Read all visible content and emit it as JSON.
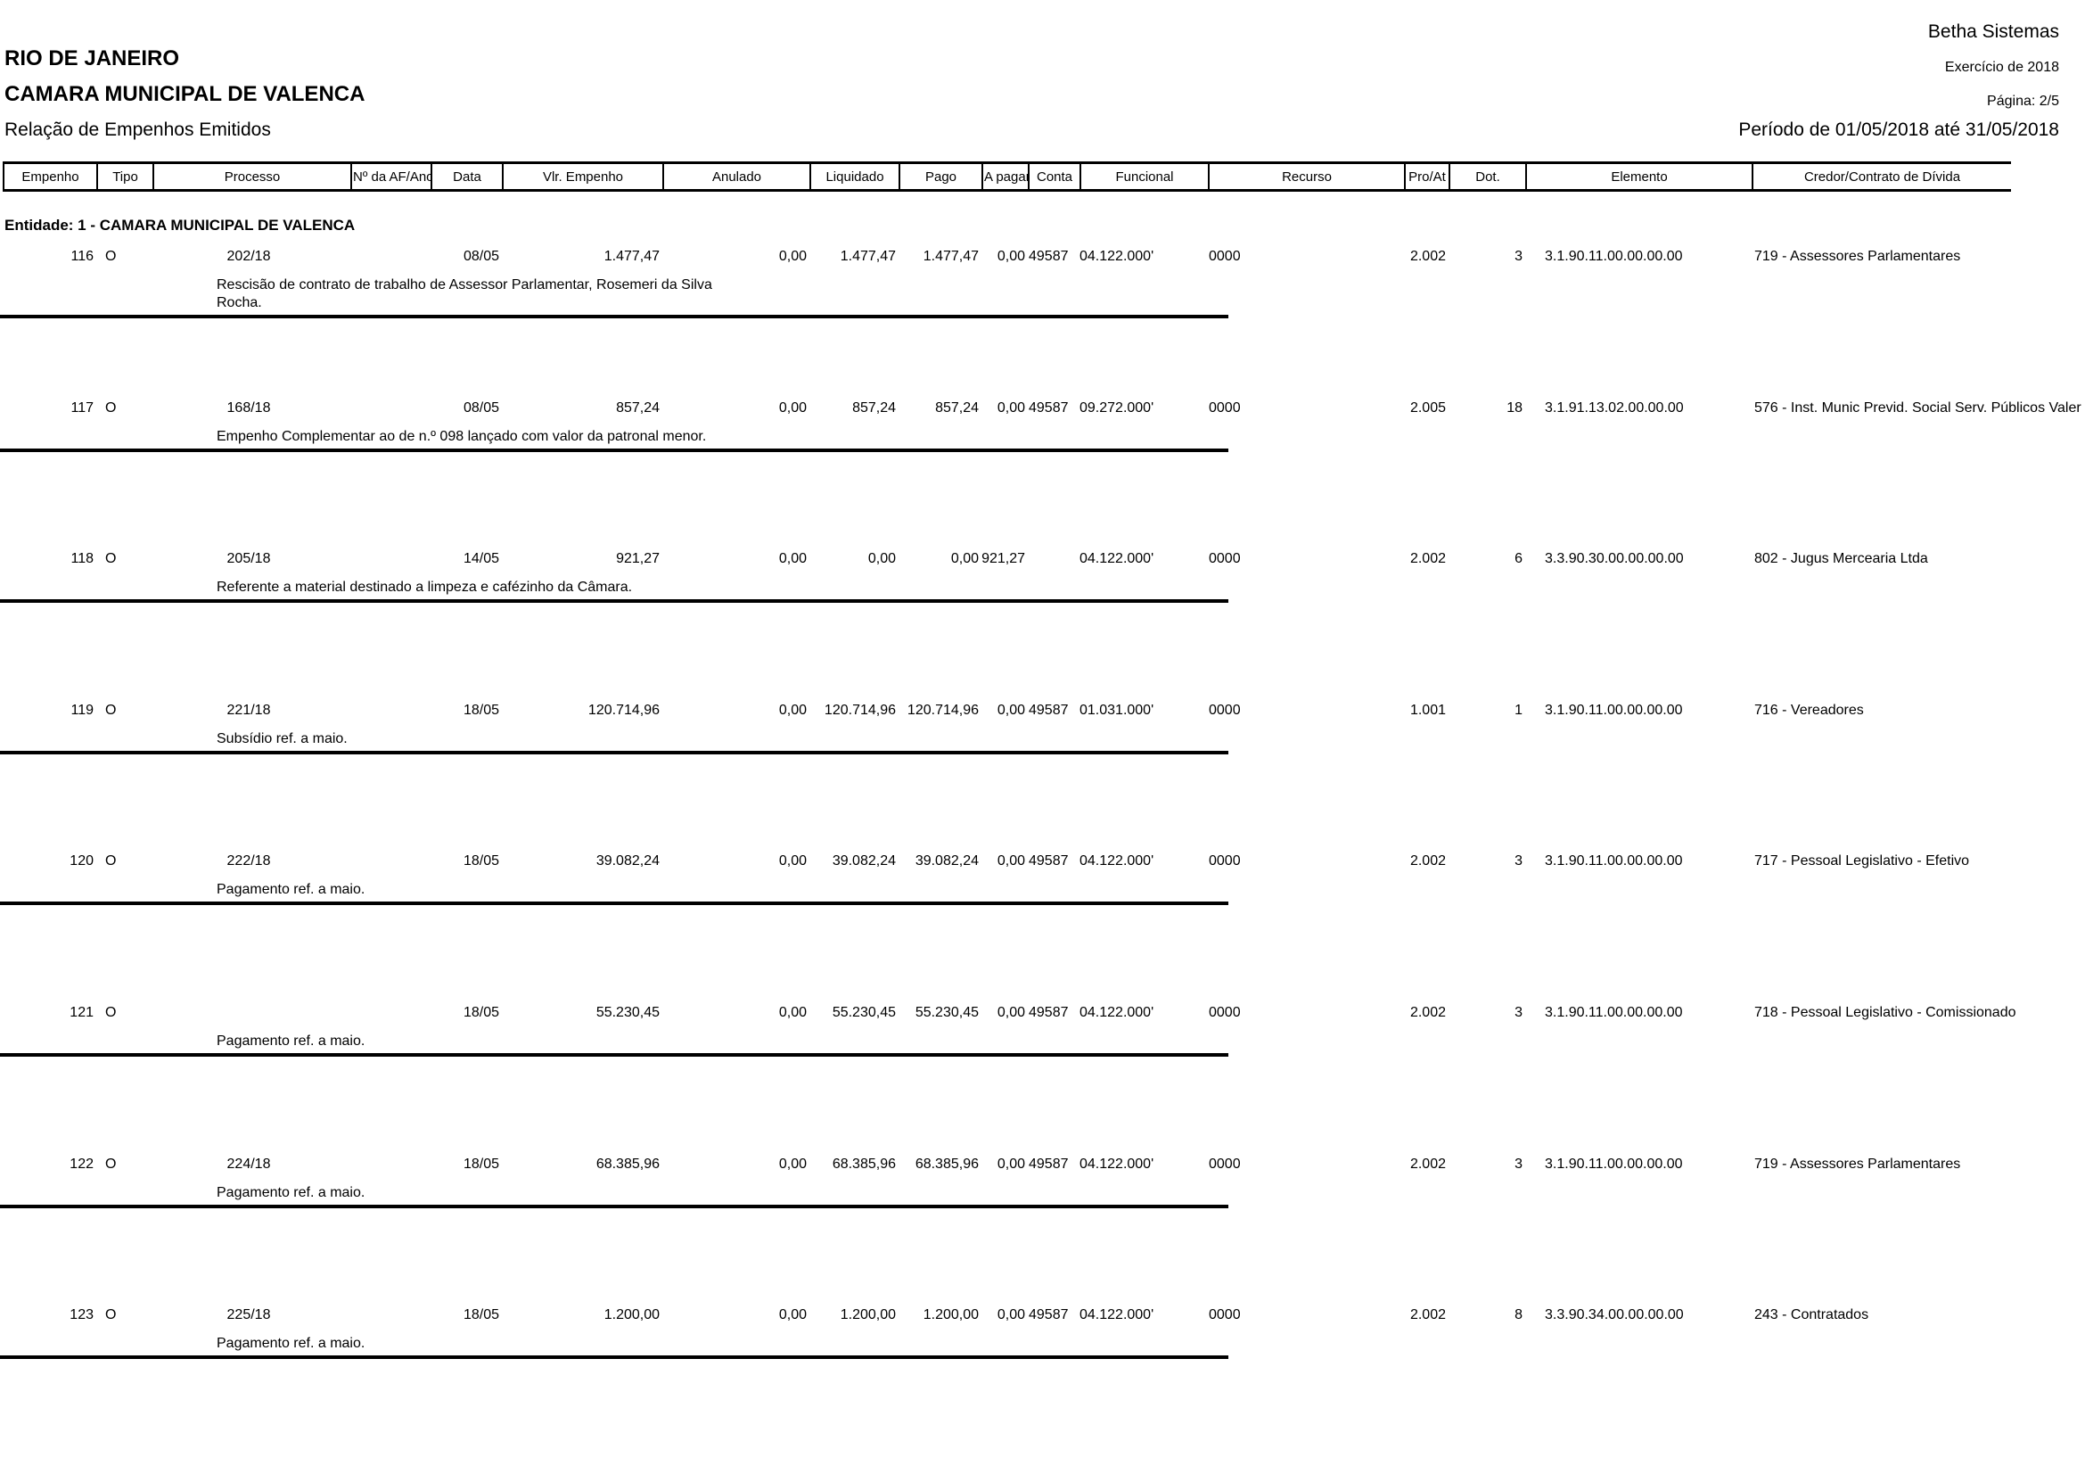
{
  "report": {
    "state": "RIO DE JANEIRO",
    "organization": "CAMARA MUNICIPAL DE VALENCA",
    "title": "Relação de Empenhos Emitidos",
    "vendor": "Betha Sistemas",
    "exercise": "Exercício de 2018",
    "page": "Página: 2/5",
    "period": "Período de 01/05/2018 até 31/05/2018",
    "entity": "Entidade: 1 - CAMARA MUNICIPAL DE VALENCA"
  },
  "table": {
    "columns": [
      "Empenho",
      "Tipo",
      "Processo",
      "Nº da AF/Ano",
      "Data",
      "Vlr. Empenho",
      "Anulado",
      "Liquidado",
      "Pago",
      "A pagar",
      "Conta",
      "Funcional",
      "Recurso",
      "Pro/At",
      "Dot.",
      "Elemento",
      "Credor/Contrato de Dívida"
    ],
    "rows": [
      {
        "empenho": "116",
        "tipo": "O",
        "processo": "202/18",
        "af_ano": "",
        "data": "08/05",
        "vlr_empenho": "1.477,47",
        "anulado": "0,00",
        "liquidado": "1.477,47",
        "pago": "1.477,47",
        "a_pagar": "0,00",
        "conta": "49587",
        "funcional": "04.122.000'",
        "recurso": "0000",
        "pro_at": "2.002",
        "dot": "3",
        "elemento": "3.1.90.11.00.00.00.00",
        "credor": "719 - Assessores Parlamentares",
        "historico": "Rescisão de contrato de trabalho de Assessor Parlamentar, Rosemeri da Silva\nRocha."
      },
      {
        "empenho": "117",
        "tipo": "O",
        "processo": "168/18",
        "af_ano": "",
        "data": "08/05",
        "vlr_empenho": "857,24",
        "anulado": "0,00",
        "liquidado": "857,24",
        "pago": "857,24",
        "a_pagar": "0,00",
        "conta": "49587",
        "funcional": "09.272.000'",
        "recurso": "0000",
        "pro_at": "2.005",
        "dot": "18",
        "elemento": "3.1.91.13.02.00.00.00",
        "credor": "576 - Inst. Munic Previd. Social Serv. Públicos Valer",
        "historico": "Empenho Complementar ao de n.º 098 lançado com valor da patronal menor."
      },
      {
        "empenho": "118",
        "tipo": "O",
        "processo": "205/18",
        "af_ano": "",
        "data": "14/05",
        "vlr_empenho": "921,27",
        "anulado": "0,00",
        "liquidado": "0,00",
        "pago": "0,00",
        "a_pagar": "921,27",
        "conta": "",
        "funcional": "04.122.000'",
        "recurso": "0000",
        "pro_at": "2.002",
        "dot": "6",
        "elemento": "3.3.90.30.00.00.00.00",
        "credor": "802 - Jugus Mercearia Ltda",
        "historico": "Referente a material destinado a limpeza e cafézinho da Câmara."
      },
      {
        "empenho": "119",
        "tipo": "O",
        "processo": "221/18",
        "af_ano": "",
        "data": "18/05",
        "vlr_empenho": "120.714,96",
        "anulado": "0,00",
        "liquidado": "120.714,96",
        "pago": "120.714,96",
        "a_pagar": "0,00",
        "conta": "49587",
        "funcional": "01.031.000'",
        "recurso": "0000",
        "pro_at": "1.001",
        "dot": "1",
        "elemento": "3.1.90.11.00.00.00.00",
        "credor": "716 - Vereadores",
        "historico": "Subsídio ref. a maio."
      },
      {
        "empenho": "120",
        "tipo": "O",
        "processo": "222/18",
        "af_ano": "",
        "data": "18/05",
        "vlr_empenho": "39.082,24",
        "anulado": "0,00",
        "liquidado": "39.082,24",
        "pago": "39.082,24",
        "a_pagar": "0,00",
        "conta": "49587",
        "funcional": "04.122.000'",
        "recurso": "0000",
        "pro_at": "2.002",
        "dot": "3",
        "elemento": "3.1.90.11.00.00.00.00",
        "credor": "717 - Pessoal Legislativo - Efetivo",
        "historico": "Pagamento ref. a maio."
      },
      {
        "empenho": "121",
        "tipo": "O",
        "processo": "",
        "af_ano": "",
        "data": "18/05",
        "vlr_empenho": "55.230,45",
        "anulado": "0,00",
        "liquidado": "55.230,45",
        "pago": "55.230,45",
        "a_pagar": "0,00",
        "conta": "49587",
        "funcional": "04.122.000'",
        "recurso": "0000",
        "pro_at": "2.002",
        "dot": "3",
        "elemento": "3.1.90.11.00.00.00.00",
        "credor": "718 - Pessoal Legislativo - Comissionado",
        "historico": "Pagamento ref. a maio."
      },
      {
        "empenho": "122",
        "tipo": "O",
        "processo": "224/18",
        "af_ano": "",
        "data": "18/05",
        "vlr_empenho": "68.385,96",
        "anulado": "0,00",
        "liquidado": "68.385,96",
        "pago": "68.385,96",
        "a_pagar": "0,00",
        "conta": "49587",
        "funcional": "04.122.000'",
        "recurso": "0000",
        "pro_at": "2.002",
        "dot": "3",
        "elemento": "3.1.90.11.00.00.00.00",
        "credor": "719 - Assessores Parlamentares",
        "historico": "Pagamento ref. a maio."
      },
      {
        "empenho": "123",
        "tipo": "O",
        "processo": "225/18",
        "af_ano": "",
        "data": "18/05",
        "vlr_empenho": "1.200,00",
        "anulado": "0,00",
        "liquidado": "1.200,00",
        "pago": "1.200,00",
        "a_pagar": "0,00",
        "conta": "49587",
        "funcional": "04.122.000'",
        "recurso": "0000",
        "pro_at": "2.002",
        "dot": "8",
        "elemento": "3.3.90.34.00.00.00.00",
        "credor": "243 - Contratados",
        "historico": "Pagamento ref. a maio."
      }
    ]
  }
}
